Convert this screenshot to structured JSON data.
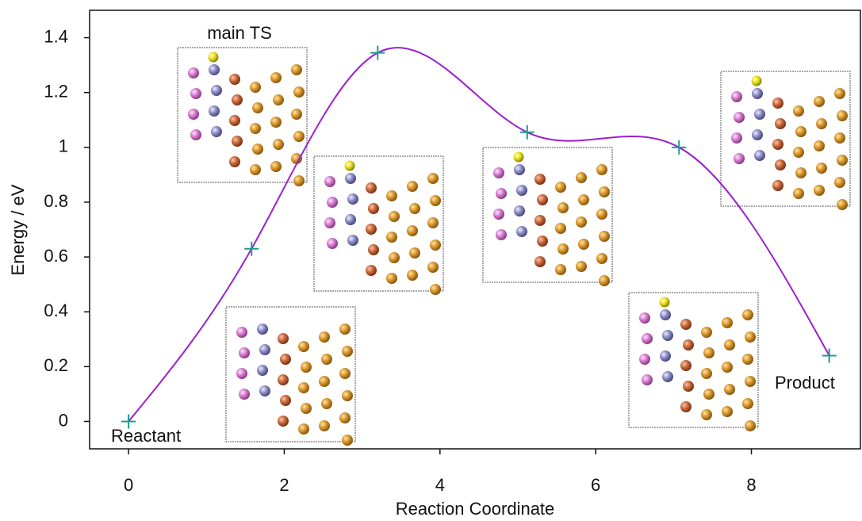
{
  "chart_data": {
    "type": "line",
    "x_label": "Reaction Coordinate",
    "y_label": "Energy / eV",
    "x": [
      0,
      1.58,
      3.2,
      5.12,
      7.07,
      9.0
    ],
    "series": [
      {
        "color": "#9b1fd1",
        "marker_color": "#1a9e8a",
        "values": [
          0,
          0.63,
          1.345,
          1.055,
          1.0,
          0.24
        ]
      }
    ],
    "xlim": [
      -0.5,
      9.4
    ],
    "xticks": [
      0,
      2,
      4,
      6,
      8
    ],
    "ylim": [
      -0.1,
      1.5
    ],
    "yticks": [
      0,
      0.2,
      0.4,
      0.6,
      0.8,
      1,
      1.2,
      1.4
    ],
    "annotations": [
      "main TS",
      "Reactant",
      "Product"
    ]
  }
}
